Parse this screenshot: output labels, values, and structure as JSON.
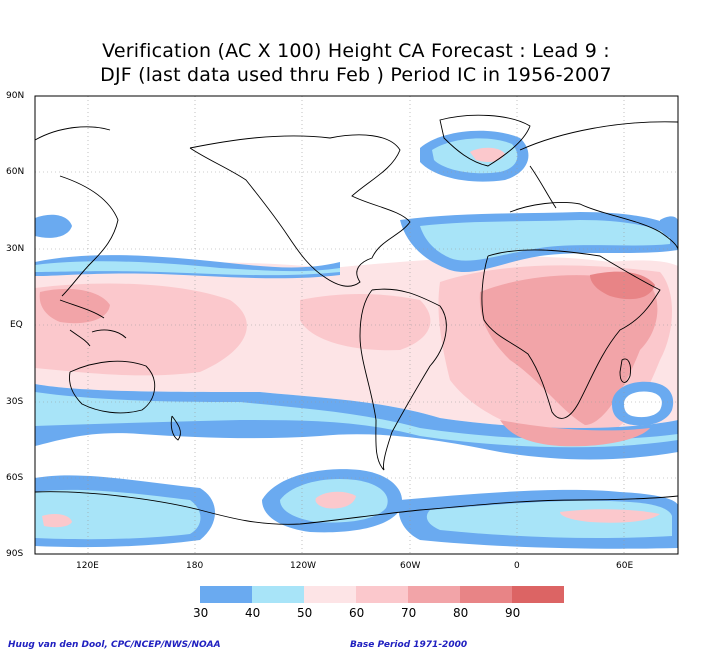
{
  "title": {
    "line1": "Verification (AC X 100) Height CA Forecast : Lead 9 :",
    "line2": "DJF (last data used thru Feb ) Period IC in 1956-2007"
  },
  "lat_labels": [
    "90N",
    "60N",
    "30N",
    "EQ",
    "30S",
    "60S",
    "90S"
  ],
  "lon_labels": [
    "120E",
    "180",
    "120W",
    "60W",
    "0",
    "60E"
  ],
  "colorbar": {
    "labels": [
      "30",
      "40",
      "50",
      "60",
      "70",
      "80",
      "90"
    ],
    "colors": [
      "#6aaaf0",
      "#a8e4f8",
      "#fde4e6",
      "#fbc8cc",
      "#f2a4a8",
      "#e88486",
      "#dc6464"
    ]
  },
  "footer": {
    "left": "Huug van den Dool, CPC/NCEP/NWS/NOAA",
    "right": "Base Period 1971-2000"
  }
}
